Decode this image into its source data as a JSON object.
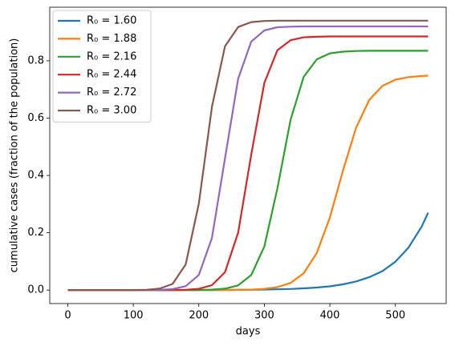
{
  "chart_data": {
    "type": "line",
    "x_label": "days",
    "y_label": "cumulative cases (fraction of the population)",
    "x": [
      0,
      20,
      40,
      60,
      80,
      100,
      120,
      140,
      160,
      180,
      200,
      220,
      240,
      260,
      280,
      300,
      320,
      340,
      360,
      380,
      400,
      420,
      440,
      460,
      480,
      500,
      520,
      540,
      550
    ],
    "series": [
      {
        "name": "R₀ = 1.60",
        "color": "#1f77b4",
        "values": [
          0,
          0,
          0,
          0,
          0,
          0,
          0,
          0,
          0,
          0.0001,
          0.0002,
          0.0003,
          0.0005,
          0.0008,
          0.0012,
          0.0018,
          0.0027,
          0.004,
          0.006,
          0.009,
          0.013,
          0.02,
          0.03,
          0.045,
          0.066,
          0.099,
          0.148,
          0.221,
          0.27
        ]
      },
      {
        "name": "R₀ = 1.88",
        "color": "#ff7f0e",
        "values": [
          0,
          0,
          0,
          0,
          0,
          0,
          0,
          0,
          0,
          0,
          0,
          0.0001,
          0.0003,
          0.0007,
          0.0017,
          0.0042,
          0.0103,
          0.0248,
          0.0583,
          0.129,
          0.253,
          0.417,
          0.566,
          0.663,
          0.712,
          0.734,
          0.743,
          0.747,
          0.748
        ]
      },
      {
        "name": "R₀ = 2.16",
        "color": "#2ca02c",
        "values": [
          0,
          0,
          0,
          0,
          0,
          0,
          0,
          0,
          0,
          0.0001,
          0.0005,
          0.0015,
          0.0051,
          0.0165,
          0.0526,
          0.152,
          0.355,
          0.594,
          0.744,
          0.805,
          0.826,
          0.832,
          0.834,
          0.835,
          0.835,
          0.835,
          0.835,
          0.835,
          0.835
        ]
      },
      {
        "name": "R₀ = 2.44",
        "color": "#d62728",
        "values": [
          0,
          0,
          0,
          0,
          0,
          0,
          0,
          0.0001,
          0.0003,
          0.0011,
          0.0044,
          0.0169,
          0.0623,
          0.201,
          0.473,
          0.723,
          0.837,
          0.872,
          0.882,
          0.884,
          0.885,
          0.885,
          0.885,
          0.885,
          0.885,
          0.885,
          0.885,
          0.885,
          0.885
        ]
      },
      {
        "name": "R₀ = 2.72",
        "color": "#9467bd",
        "values": [
          0,
          0,
          0,
          0,
          0,
          5e-05,
          0.0002,
          0.0008,
          0.0034,
          0.0136,
          0.0527,
          0.182,
          0.46,
          0.738,
          0.867,
          0.906,
          0.917,
          0.919,
          0.92,
          0.92,
          0.92,
          0.92,
          0.92,
          0.92,
          0.92,
          0.92,
          0.92,
          0.92,
          0.92
        ]
      },
      {
        "name": "R₀ = 3.00",
        "color": "#8c564b",
        "values": [
          0,
          0,
          0,
          0,
          0,
          0.0002,
          0.0011,
          0.0049,
          0.0216,
          0.0896,
          0.302,
          0.639,
          0.851,
          0.918,
          0.935,
          0.939,
          0.94,
          0.94,
          0.94,
          0.94,
          0.94,
          0.94,
          0.94,
          0.94,
          0.94,
          0.94,
          0.94,
          0.94,
          0.94
        ]
      }
    ],
    "xlim": [
      -27.5,
      577.5
    ],
    "xticks": [
      0,
      100,
      200,
      300,
      400,
      500
    ],
    "ylim": [
      -0.047,
      0.987
    ],
    "yticks": [
      {
        "value": 0,
        "label": "0.0"
      },
      0.2,
      0.4,
      0.6,
      0.8
    ],
    "legend": "upper left"
  }
}
